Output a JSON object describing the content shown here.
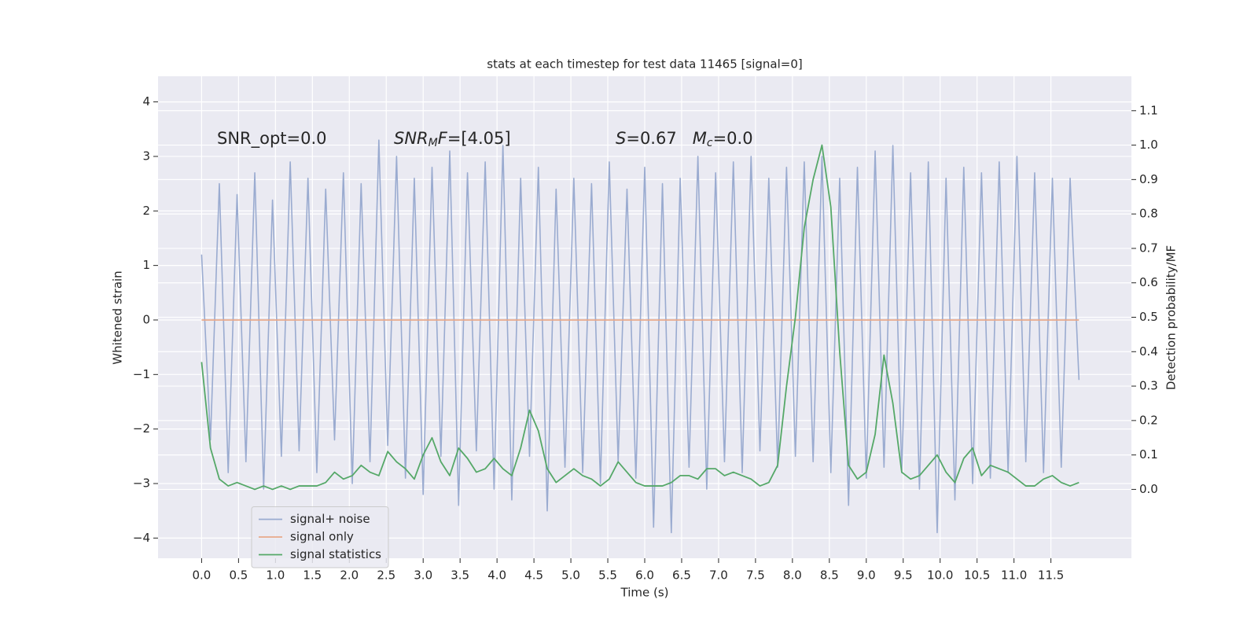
{
  "chart_data": {
    "type": "line",
    "title": "stats at each timestep for test data 11465 [signal=0]",
    "xlabel": "Time (s)",
    "ylabel": "Whitened strain",
    "y2label": "Detection probability/MF",
    "annotations": [
      [
        {
          "text": "SNR_opt=0.0"
        }
      ],
      [
        {
          "text": "SNR",
          "style": "italic"
        },
        {
          "text": "M",
          "style": "sub"
        },
        {
          "text": "F",
          "style": "italic"
        },
        {
          "text": "=[4.05]"
        }
      ],
      [
        {
          "text": "S",
          "style": "italic"
        },
        {
          "text": "=0.67   "
        },
        {
          "text": "M",
          "style": "italic"
        },
        {
          "text": "c",
          "style": "sub"
        },
        {
          "text": "=0.0"
        }
      ]
    ],
    "grid": true,
    "legend": "lower left",
    "xlim": [
      -0.59,
      12.59
    ],
    "ylim": [
      -4.37,
      4.47
    ],
    "y2lim": [
      -0.2,
      1.2
    ],
    "xticks": [
      {
        "value": 0,
        "label": "0.0"
      },
      0.5,
      {
        "value": 1,
        "label": "1.0"
      },
      1.5,
      {
        "value": 2,
        "label": "2.0"
      },
      2.5,
      {
        "value": 3,
        "label": "3.0"
      },
      3.5,
      {
        "value": 4,
        "label": "4.0"
      },
      4.5,
      {
        "value": 5,
        "label": "5.0"
      },
      5.5,
      {
        "value": 6,
        "label": "6.0"
      },
      6.5,
      {
        "value": 7,
        "label": "7.0"
      },
      7.5,
      {
        "value": 8,
        "label": "8.0"
      },
      8.5,
      {
        "value": 9,
        "label": "9.0"
      },
      9.5,
      {
        "value": 10,
        "label": "10.0"
      },
      10.5,
      {
        "value": 11,
        "label": "11.0"
      },
      11.5
    ],
    "yticks": [
      {
        "value": -4,
        "label": "−4"
      },
      {
        "value": -3,
        "label": "−3"
      },
      {
        "value": -2,
        "label": "−2"
      },
      {
        "value": -1,
        "label": "−1"
      },
      0,
      1,
      2,
      3,
      4
    ],
    "y2ticks": [
      {
        "value": 0,
        "label": "0.0"
      },
      0.1,
      0.2,
      0.3,
      0.4,
      0.5,
      0.6,
      0.7,
      0.8,
      0.9,
      {
        "value": 1,
        "label": "1.0"
      },
      1.1
    ],
    "x": [
      0,
      0.12,
      0.24,
      0.36,
      0.48,
      0.6,
      0.72,
      0.84,
      0.96,
      1.08,
      1.2,
      1.32,
      1.44,
      1.56,
      1.68,
      1.8,
      1.92,
      2.04,
      2.16,
      2.28,
      2.4,
      2.52,
      2.64,
      2.76,
      2.88,
      3,
      3.12,
      3.24,
      3.36,
      3.48,
      3.6,
      3.72,
      3.84,
      3.96,
      4.08,
      4.2,
      4.32,
      4.44,
      4.56,
      4.68,
      4.8,
      4.92,
      5.04,
      5.16,
      5.28,
      5.4,
      5.52,
      5.64,
      5.76,
      5.88,
      6,
      6.12,
      6.24,
      6.36,
      6.48,
      6.6,
      6.72,
      6.84,
      6.96,
      7.08,
      7.2,
      7.32,
      7.44,
      7.56,
      7.68,
      7.8,
      7.92,
      8.04,
      8.16,
      8.28,
      8.4,
      8.52,
      8.64,
      8.76,
      8.88,
      9,
      9.12,
      9.24,
      9.36,
      9.48,
      9.6,
      9.72,
      9.84,
      9.96,
      10.08,
      10.2,
      10.32,
      10.44,
      10.56,
      10.68,
      10.8,
      10.92,
      11.04,
      11.16,
      11.28,
      11.4,
      11.52,
      11.64,
      11.76,
      11.88
    ],
    "series": [
      {
        "name": "signal+ noise",
        "color": "#9aabd0",
        "values": [
          1.2,
          -2.2,
          2.5,
          -2.8,
          2.3,
          -2.6,
          2.7,
          -3.1,
          2.2,
          -2.5,
          2.9,
          -2.4,
          2.6,
          -2.8,
          2.4,
          -2.2,
          2.7,
          -3.0,
          2.5,
          -2.6,
          3.3,
          -2.3,
          3.0,
          -2.9,
          2.6,
          -3.2,
          2.8,
          -2.5,
          3.1,
          -3.4,
          2.7,
          -2.4,
          2.9,
          -3.1,
          3.2,
          -3.3,
          2.6,
          -2.5,
          2.8,
          -3.5,
          2.4,
          -2.7,
          2.6,
          -2.8,
          2.5,
          -3.0,
          2.9,
          -2.6,
          2.4,
          -2.9,
          2.8,
          -3.8,
          2.5,
          -3.9,
          2.6,
          -2.7,
          3.0,
          -3.1,
          2.7,
          -2.6,
          2.9,
          -2.8,
          3.0,
          -2.4,
          2.6,
          -2.7,
          2.8,
          -2.5,
          2.9,
          -2.6,
          3.0,
          -2.8,
          2.6,
          -3.4,
          2.8,
          -2.9,
          3.1,
          -2.7,
          3.2,
          -2.8,
          2.7,
          -3.1,
          2.9,
          -3.9,
          2.6,
          -3.3,
          2.8,
          -3.0,
          2.7,
          -2.9,
          2.9,
          -2.8,
          3.0,
          -2.6,
          2.7,
          -2.8,
          2.6,
          -2.7,
          2.6,
          -1.1
        ]
      },
      {
        "name": "signal only",
        "color": "#e8a98a",
        "values": [
          0,
          0,
          0,
          0,
          0,
          0,
          0,
          0,
          0,
          0,
          0,
          0,
          0,
          0,
          0,
          0,
          0,
          0,
          0,
          0,
          0,
          0,
          0,
          0,
          0,
          0,
          0,
          0,
          0,
          0,
          0,
          0,
          0,
          0,
          0,
          0,
          0,
          0,
          0,
          0,
          0,
          0,
          0,
          0,
          0,
          0,
          0,
          0,
          0,
          0,
          0,
          0,
          0,
          0,
          0,
          0,
          0,
          0,
          0,
          0,
          0,
          0,
          0,
          0,
          0,
          0,
          0,
          0,
          0,
          0,
          0,
          0,
          0,
          0,
          0,
          0,
          0,
          0,
          0,
          0,
          0,
          0,
          0,
          0,
          0,
          0,
          0,
          0,
          0,
          0,
          0,
          0,
          0,
          0,
          0,
          0,
          0,
          0,
          0,
          0
        ]
      },
      {
        "name": "signal statistics",
        "color": "#55a868",
        "axis": "y2",
        "values": [
          0.37,
          0.12,
          0.03,
          0.01,
          0.02,
          0.01,
          0.0,
          0.01,
          0.0,
          0.01,
          0.0,
          0.01,
          0.01,
          0.01,
          0.02,
          0.05,
          0.03,
          0.04,
          0.07,
          0.05,
          0.04,
          0.11,
          0.08,
          0.06,
          0.03,
          0.1,
          0.15,
          0.08,
          0.04,
          0.12,
          0.09,
          0.05,
          0.06,
          0.09,
          0.06,
          0.04,
          0.12,
          0.23,
          0.17,
          0.06,
          0.02,
          0.04,
          0.06,
          0.04,
          0.03,
          0.01,
          0.03,
          0.08,
          0.05,
          0.02,
          0.01,
          0.01,
          0.01,
          0.02,
          0.04,
          0.04,
          0.03,
          0.06,
          0.06,
          0.04,
          0.05,
          0.04,
          0.03,
          0.01,
          0.02,
          0.07,
          0.3,
          0.5,
          0.76,
          0.9,
          1.0,
          0.82,
          0.4,
          0.07,
          0.03,
          0.05,
          0.16,
          0.39,
          0.25,
          0.05,
          0.03,
          0.04,
          0.07,
          0.1,
          0.05,
          0.02,
          0.09,
          0.12,
          0.04,
          0.07,
          0.06,
          0.05,
          0.03,
          0.01,
          0.01,
          0.03,
          0.04,
          0.02,
          0.01,
          0.02
        ]
      }
    ]
  }
}
